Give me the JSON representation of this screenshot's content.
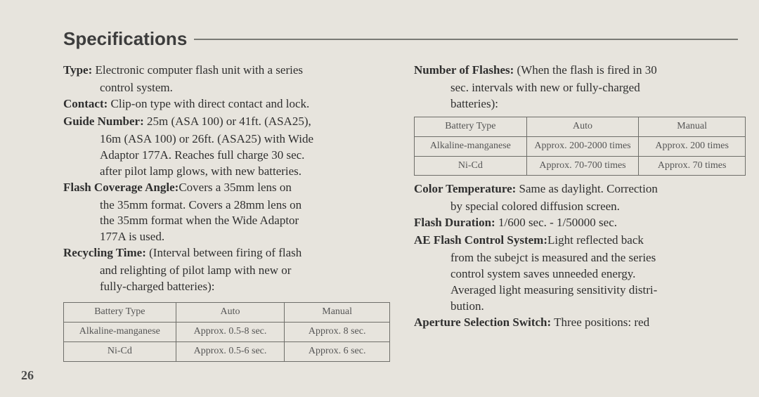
{
  "page": {
    "title": "Specifications",
    "pagenum": "26"
  },
  "left": {
    "type_label": "Type:",
    "type_text": " Electronic computer flash unit  with a series",
    "type_cont": "control system.",
    "contact_label": "Contact:",
    "contact_text": " Clip-on type with direct contact and lock.",
    "guide_label": "Guide Number:",
    "guide_text": " 25m (ASA 100) or 41ft. (ASA25),",
    "guide_cont1": "16m (ASA 100) or 26ft. (ASA25) with Wide",
    "guide_cont2": "Adaptor 177A. Reaches full charge 30 sec.",
    "guide_cont3": "after pilot lamp glows, with new batteries.",
    "flashcov_label": "Flash Coverage Angle:",
    "flashcov_text": "Covers a 35mm lens on",
    "flashcov_cont1": "the 35mm format. Covers a 28mm lens on",
    "flashcov_cont2": "the 35mm format when the Wide Adaptor",
    "flashcov_cont3": "177A is used.",
    "recy_label": "Recycling Time:",
    "recy_text": " (Interval between firing of flash",
    "recy_cont1": "and relighting of pilot lamp with new or",
    "recy_cont2": "fully-charged batteries):"
  },
  "right": {
    "nof_label": "Number of Flashes:",
    "nof_text": " (When the flash is fired in 30",
    "nof_cont1": "sec. intervals with new or fully-charged",
    "nof_cont2": "batteries):",
    "ct_label": "Color Temperature:",
    "ct_text": " Same as daylight. Correction",
    "ct_cont1": "by special colored diffusion screen.",
    "fd_label": "Flash Duration:",
    "fd_text": "  1/600 sec.  - 1/50000 sec.",
    "ae_label": "AE Flash Control System:",
    "ae_text": "Light reflected back",
    "ae_cont1": "from the subejct is measured and the series",
    "ae_cont2": "control system saves unneeded energy.",
    "ae_cont3": "Averaged light measuring sensitivity distri-",
    "ae_cont4": "bution.",
    "ap_label": "Aperture Selection Switch:",
    "ap_text": " Three positions: red"
  },
  "table1": {
    "h1": "Battery Type",
    "h2": "Auto",
    "h3": "Manual",
    "r1c1": "Alkaline-manganese",
    "r1c2": "Approx. 0.5-8 sec.",
    "r1c3": "Approx. 8 sec.",
    "r2c1": "Ni-Cd",
    "r2c2": "Approx. 0.5-6 sec.",
    "r2c3": "Approx. 6 sec."
  },
  "table2": {
    "h1": "Battery Type",
    "h2": "Auto",
    "h3": "Manual",
    "r1c1": "Alkaline-manganese",
    "r1c2": "Approx. 200-2000 times",
    "r1c3": "Approx. 200 times",
    "r2c1": "Ni-Cd",
    "r2c2": "Approx. 70-700 times",
    "r2c3": "Approx. 70 times"
  }
}
